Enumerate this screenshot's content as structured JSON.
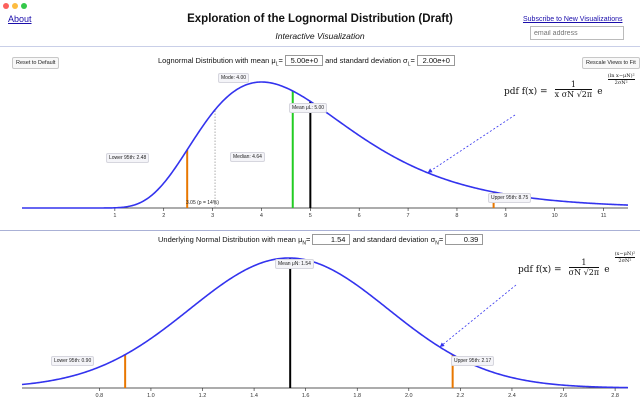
{
  "window": {
    "title": "",
    "controls": [
      "close",
      "minimize",
      "maximize"
    ]
  },
  "header": {
    "about_link": "About",
    "title": "Exploration of the Lognormal Distribution (Draft)",
    "subtitle": "Interactive Visualization",
    "subscribe_link": "Subscribe to New Visualizations",
    "email_placeholder": "email address"
  },
  "top_panel": {
    "reset_button": "Reset to Default",
    "rescale_button": "Rescale Views to Fit",
    "mean_prefix": "Lognormal Distribution with mean ",
    "mean_symbol": "μ",
    "mean_sub": "L",
    "mean_value": "5.00e+0",
    "sd_prefix": " and standard deviation ",
    "sd_symbol": "σ",
    "sd_sub": "L",
    "sd_value": "2.00e+0",
    "labels": {
      "mode": "Mode: 4.00",
      "mean": "Mean μL: 5.00",
      "median": "Median: 4.64",
      "lower95": "Lower 95th: 2.48",
      "upper95": "Upper 95th: 8.75",
      "marker": "3.05 (p = 14%)"
    },
    "formula": {
      "lhs": "pdf f(x) =",
      "numerator": "1",
      "denominator": "x σN √2π",
      "exp_base": "e",
      "exp_num": "(ln x−μN)²",
      "exp_den": "2σN²"
    }
  },
  "bottom_panel": {
    "mean_prefix": "Underlying Normal Distribution with mean ",
    "mean_symbol": "μ",
    "mean_sub": "N",
    "mean_value": "1.54",
    "sd_prefix": " and standard deviation ",
    "sd_symbol": "σ",
    "sd_sub": "N",
    "sd_value": "0.39",
    "labels": {
      "mean": "Mean μN: 1.54",
      "lower95": "Lower 95th: 0.90",
      "upper95": "Upper 95th: 2.17"
    },
    "formula": {
      "lhs": "pdf f(x) =",
      "numerator": "1",
      "denominator": "σN √2π",
      "exp_base": "e",
      "exp_num": "(x−μN)²",
      "exp_den": "2σN²"
    }
  },
  "chart_data": [
    {
      "type": "line",
      "title": "",
      "xlabel": "",
      "ylabel": "",
      "xlim": [
        -0.9,
        11.5
      ],
      "x_ticks": [
        1,
        2,
        3,
        4,
        5,
        6,
        7,
        8,
        9,
        10,
        11
      ],
      "series": [
        {
          "distribution": "lognormal",
          "mu_N": 1.535,
          "sigma_N": 0.385
        }
      ],
      "markers": {
        "lower95": 2.48,
        "marker": 3.05,
        "mode": 4.0,
        "median": 4.64,
        "mean": 5.0,
        "upper95": 8.75
      },
      "colors": {
        "curve": "#3333ee",
        "median": "#22cc22",
        "mean": "#000000",
        "percentile": "#e87700",
        "marker": "#999999"
      }
    },
    {
      "type": "line",
      "title": "",
      "xlabel": "",
      "ylabel": "",
      "xlim": [
        0.5,
        2.85
      ],
      "x_ticks": [
        0.8,
        1.0,
        1.2,
        1.4,
        1.6,
        1.8,
        2.0,
        2.2,
        2.4,
        2.6,
        2.8
      ],
      "series": [
        {
          "distribution": "normal",
          "mu": 1.535,
          "sigma": 0.385
        }
      ],
      "markers": {
        "lower95": 0.9,
        "mean": 1.54,
        "upper95": 2.17
      },
      "colors": {
        "curve": "#3333ee",
        "mean": "#000000",
        "percentile": "#e87700"
      }
    }
  ]
}
